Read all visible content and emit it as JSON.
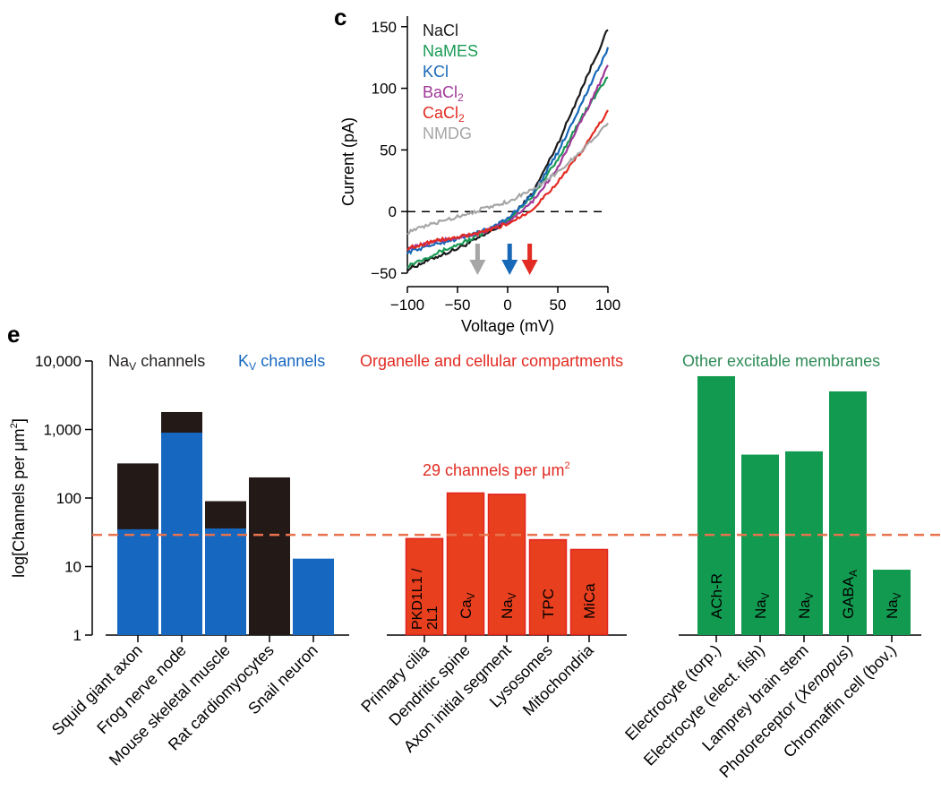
{
  "panel_c_label": "c",
  "panel_e_label": "e",
  "colors": {
    "black": "#231f20",
    "nacl": "#1a1a1a",
    "names": "#1a9a54",
    "kcl": "#1868b8",
    "bacl2": "#a03898",
    "cacl2": "#e22b22",
    "nmdg": "#a6a6a6",
    "na_bar": "#231a17",
    "k_bar": "#1567c0",
    "org_bar": "#e8401e",
    "other_bar": "#129a50",
    "dashed_ref": "#e8734e",
    "k_title": "#1567c0",
    "org_title": "#e22b22",
    "other_title": "#2e8b57"
  },
  "chart_data": [
    {
      "type": "line",
      "title": "",
      "xlabel": "Voltage (mV)",
      "ylabel": "Current (pA)",
      "xlim": [
        -100,
        100
      ],
      "ylim": [
        -50,
        160
      ],
      "xticks": [
        -100,
        -50,
        0,
        50,
        100
      ],
      "xtick_labels": [
        "−100",
        "−50",
        "0",
        "50",
        "100"
      ],
      "yticks": [
        -50,
        0,
        50,
        100,
        150
      ],
      "ytick_labels": [
        "−50",
        "0",
        "50",
        "100",
        "150"
      ],
      "zero_line": 0,
      "x": [
        -100,
        -75,
        -50,
        -25,
        0,
        25,
        50,
        75,
        100
      ],
      "series": [
        {
          "name": "NaCl",
          "sub": "",
          "color_key": "nacl",
          "values": [
            -47,
            -38,
            -30,
            -20,
            -8,
            15,
            55,
            102,
            148
          ]
        },
        {
          "name": "NaMES",
          "sub": "",
          "color_key": "names",
          "values": [
            -44,
            -35,
            -27,
            -18,
            -7,
            13,
            42,
            78,
            110
          ]
        },
        {
          "name": "KCl",
          "sub": "",
          "color_key": "kcl",
          "values": [
            -33,
            -27,
            -22,
            -16,
            -6,
            14,
            48,
            90,
            132
          ]
        },
        {
          "name": "BaCl",
          "sub": "2",
          "color_key": "bacl2",
          "values": [
            -30,
            -25,
            -21,
            -17,
            -9,
            8,
            36,
            76,
            118
          ]
        },
        {
          "name": "CaCl",
          "sub": "2",
          "color_key": "cacl2",
          "values": [
            -30,
            -24,
            -21,
            -17,
            -10,
            2,
            24,
            50,
            82
          ]
        },
        {
          "name": "NMDG",
          "sub": "",
          "color_key": "nmdg",
          "values": [
            -17,
            -10,
            -4,
            2,
            8,
            18,
            32,
            50,
            72
          ]
        }
      ],
      "reversal_arrows": [
        {
          "x": -30,
          "color_key": "nmdg"
        },
        {
          "x": 2,
          "color_key": "kcl"
        },
        {
          "x": 22,
          "color_key": "cacl2"
        }
      ]
    },
    {
      "type": "bar",
      "scale": "log",
      "ylabel": "log[Channels per μm",
      "ylabel_sup": "2",
      "ylabel_end": "]",
      "ylim": [
        1,
        10000
      ],
      "yticks": [
        1,
        10,
        100,
        1000,
        10000
      ],
      "ytick_labels": [
        "1",
        "10",
        "100",
        "1,000",
        "10,000"
      ],
      "reference_line": 29,
      "reference_label": "29 channels per μm",
      "reference_label_sup": "2",
      "group_titles": [
        {
          "text": "Na",
          "sub": "V",
          "rest": " channels",
          "color_key": "black"
        },
        {
          "text": "K",
          "sub": "V",
          "rest": " channels",
          "color_key": "k_title"
        },
        {
          "text": "Organelle and cellular compartments",
          "sub": "",
          "rest": "",
          "color_key": "org_title"
        },
        {
          "text": "Other excitable membranes",
          "sub": "",
          "rest": "",
          "color_key": "other_title"
        }
      ],
      "groups": [
        {
          "bars": [
            {
              "category": "Squid giant axon",
              "value": 320,
              "k_value": 35,
              "color_key": "na_bar",
              "inner": "",
              "inner_sub": ""
            },
            {
              "category": "Frog nerve node",
              "value": 1800,
              "k_value": 900,
              "color_key": "na_bar",
              "inner": "",
              "inner_sub": ""
            },
            {
              "category": "Mouse skeletal muscle",
              "value": 90,
              "k_value": 36,
              "color_key": "na_bar",
              "inner": "",
              "inner_sub": ""
            },
            {
              "category": "Rat cardiomyocytes",
              "value": 200,
              "k_value": null,
              "color_key": "na_bar",
              "inner": "",
              "inner_sub": ""
            },
            {
              "category": "Snail neuron",
              "value": 13,
              "k_value": 13,
              "color_key": "k_bar",
              "inner": "",
              "inner_sub": ""
            }
          ]
        },
        {
          "bars": [
            {
              "category": "Primary cilia",
              "value": 26,
              "k_value": null,
              "color_key": "org_bar",
              "inner": "PKD1L1 /",
              "inner2": "2L1",
              "inner_sub": ""
            },
            {
              "category": "Dendritic spine",
              "value": 120,
              "k_value": null,
              "color_key": "org_bar",
              "inner": "Ca",
              "inner_sub": "V"
            },
            {
              "category": "Axon initial segment",
              "value": 115,
              "k_value": null,
              "color_key": "org_bar",
              "inner": "Na",
              "inner_sub": "V"
            },
            {
              "category": "Lysosomes",
              "value": 25,
              "k_value": null,
              "color_key": "org_bar",
              "inner": "TPC",
              "inner_sub": ""
            },
            {
              "category": "Mitochondria",
              "value": 18,
              "k_value": null,
              "color_key": "org_bar",
              "inner": "MiCa",
              "inner_sub": ""
            }
          ]
        },
        {
          "bars": [
            {
              "category": "Electrocyte (torp.)",
              "value": 6000,
              "k_value": null,
              "color_key": "other_bar",
              "inner": "ACh-R",
              "inner_sub": ""
            },
            {
              "category": "Electrocyte (elect. fish)",
              "value": 430,
              "k_value": null,
              "color_key": "other_bar",
              "inner": "Na",
              "inner_sub": "V"
            },
            {
              "category": "Lamprey brain stem",
              "value": 480,
              "k_value": null,
              "color_key": "other_bar",
              "inner": "Na",
              "inner_sub": "V"
            },
            {
              "category": "Photoreceptor (Xenopus)",
              "value": 3600,
              "k_value": null,
              "color_key": "other_bar",
              "inner": "GABA",
              "inner_sub": "A"
            },
            {
              "category": "Chromaffin cell (bov.)",
              "value": 9,
              "k_value": null,
              "color_key": "other_bar",
              "inner": "Na",
              "inner_sub": "V"
            }
          ]
        }
      ]
    }
  ]
}
